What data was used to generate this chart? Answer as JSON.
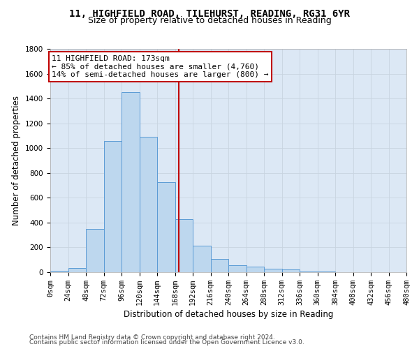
{
  "title_line1": "11, HIGHFIELD ROAD, TILEHURST, READING, RG31 6YR",
  "title_line2": "Size of property relative to detached houses in Reading",
  "xlabel": "Distribution of detached houses by size in Reading",
  "ylabel": "Number of detached properties",
  "footer_line1": "Contains HM Land Registry data © Crown copyright and database right 2024.",
  "footer_line2": "Contains public sector information licensed under the Open Government Licence v3.0.",
  "bin_edges": [
    0,
    24,
    48,
    72,
    96,
    120,
    144,
    168,
    192,
    216,
    240,
    264,
    288,
    312,
    336,
    360,
    384,
    408,
    432,
    456,
    480
  ],
  "bar_heights": [
    10,
    35,
    350,
    1055,
    1450,
    1090,
    725,
    430,
    215,
    105,
    55,
    47,
    30,
    20,
    5,
    5,
    2,
    2,
    2,
    1
  ],
  "bar_color": "#bdd7ee",
  "bar_edge_color": "#5b9bd5",
  "vline_x": 173,
  "vline_color": "#c00000",
  "annotation_text": "11 HIGHFIELD ROAD: 173sqm\n← 85% of detached houses are smaller (4,760)\n14% of semi-detached houses are larger (800) →",
  "annotation_box_color": "#c00000",
  "annotation_fill": "white",
  "ylim": [
    0,
    1800
  ],
  "yticks": [
    0,
    200,
    400,
    600,
    800,
    1000,
    1200,
    1400,
    1600,
    1800
  ],
  "xtick_labels": [
    "0sqm",
    "24sqm",
    "48sqm",
    "72sqm",
    "96sqm",
    "120sqm",
    "144sqm",
    "168sqm",
    "192sqm",
    "216sqm",
    "240sqm",
    "264sqm",
    "288sqm",
    "312sqm",
    "336sqm",
    "360sqm",
    "384sqm",
    "408sqm",
    "432sqm",
    "456sqm",
    "480sqm"
  ],
  "grid_color": "#c8d4e0",
  "background_color": "#dce8f5",
  "title_fontsize": 10,
  "subtitle_fontsize": 9,
  "axis_label_fontsize": 8.5,
  "tick_fontsize": 7.5,
  "annotation_fontsize": 8,
  "footer_fontsize": 6.5
}
